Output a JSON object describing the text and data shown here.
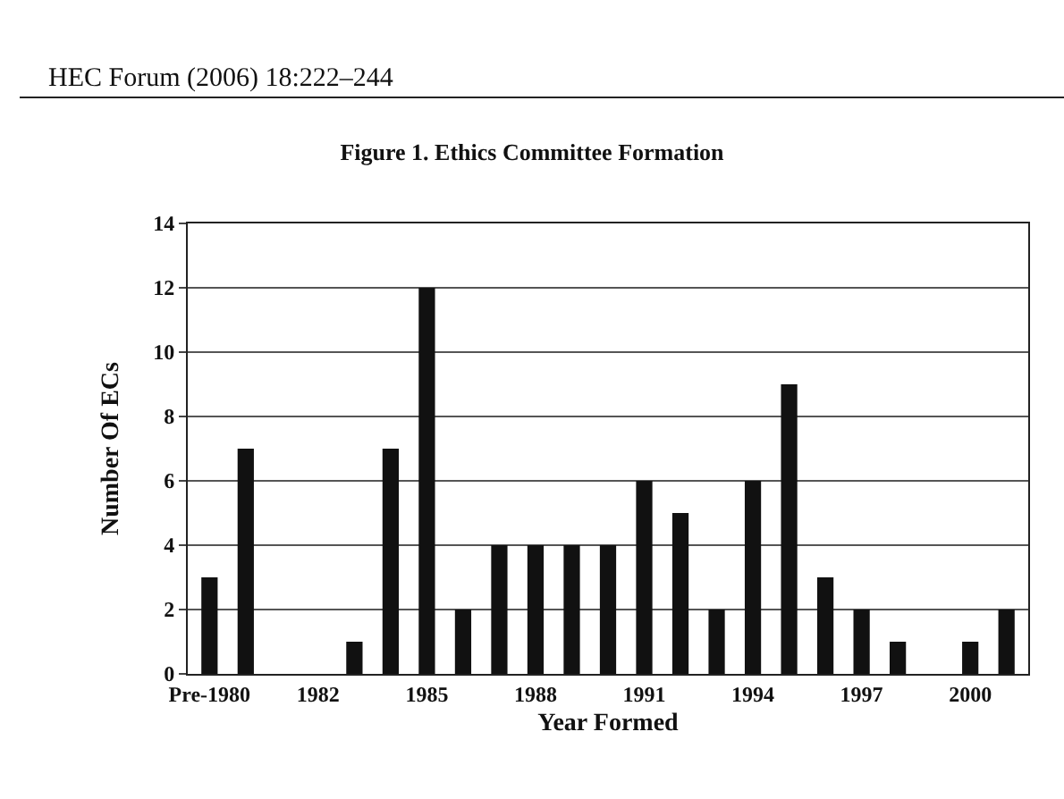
{
  "chart_data": {
    "type": "bar",
    "title": "Figure 1. Ethics Committee Formation",
    "xlabel": "Year Formed",
    "ylabel": "Number Of ECs",
    "annotations": [
      "HEC Forum (2006) 18:222–244"
    ],
    "categories": [
      "Pre-1980",
      null,
      null,
      "1982",
      null,
      null,
      "1985",
      null,
      null,
      "1988",
      null,
      null,
      "1991",
      null,
      null,
      "1994",
      null,
      null,
      "1997",
      null,
      null,
      "2000",
      null
    ],
    "values": [
      3,
      7,
      0,
      0,
      1,
      7,
      12,
      2,
      4,
      4,
      4,
      4,
      6,
      5,
      2,
      6,
      9,
      3,
      2,
      1,
      0,
      1,
      2
    ],
    "color": "#111111",
    "ylim": [
      0,
      14
    ],
    "yticks": [
      0,
      2,
      4,
      6,
      8,
      10,
      12,
      14
    ],
    "grid": "y"
  }
}
